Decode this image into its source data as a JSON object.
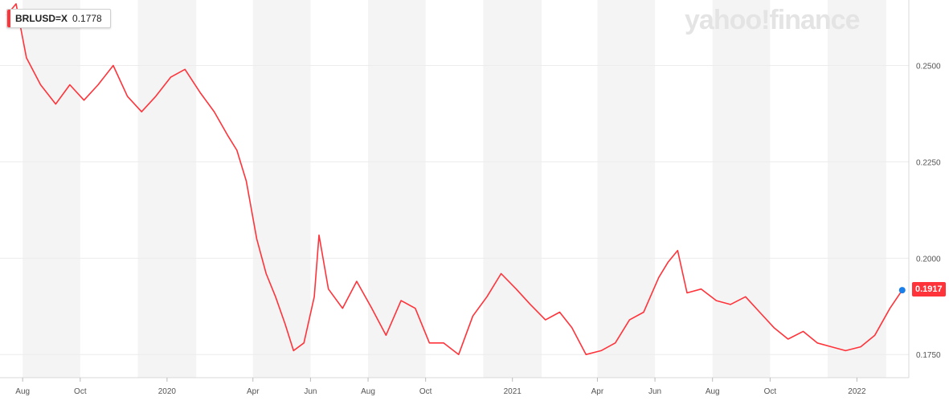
{
  "legend": {
    "symbol": "BRLUSD=X",
    "value": "0.1778"
  },
  "watermark": {
    "brand": "yahoo!finance"
  },
  "last_price_label": "0.1917",
  "colors": {
    "line": "#ff333a",
    "current_dot": "#1a7fe8",
    "band": "#f4f4f4",
    "grid": "#ececec"
  },
  "chart_data": {
    "type": "line",
    "title": "",
    "xlabel": "",
    "ylabel": "",
    "series": [
      {
        "name": "",
        "x": [
          "2019-07-15",
          "2019-07-25",
          "2019-08-05",
          "2019-08-20",
          "2019-09-05",
          "2019-09-20",
          "2019-10-05",
          "2019-10-20",
          "2019-11-05",
          "2019-11-20",
          "2019-12-05",
          "2019-12-20",
          "2020-01-05",
          "2020-01-20",
          "2020-02-05",
          "2020-02-20",
          "2020-03-05",
          "2020-03-15",
          "2020-03-25",
          "2020-04-05",
          "2020-04-15",
          "2020-04-25",
          "2020-05-05",
          "2020-05-14",
          "2020-05-25",
          "2020-06-05",
          "2020-06-10",
          "2020-06-20",
          "2020-07-05",
          "2020-07-20",
          "2020-08-05",
          "2020-08-20",
          "2020-09-05",
          "2020-09-20",
          "2020-10-05",
          "2020-10-20",
          "2020-11-05",
          "2020-11-20",
          "2020-12-05",
          "2020-12-20",
          "2021-01-05",
          "2021-01-20",
          "2021-02-05",
          "2021-02-20",
          "2021-03-05",
          "2021-03-20",
          "2021-04-05",
          "2021-04-20",
          "2021-05-05",
          "2021-05-20",
          "2021-06-05",
          "2021-06-15",
          "2021-06-25",
          "2021-07-05",
          "2021-07-20",
          "2021-08-05",
          "2021-08-20",
          "2021-09-05",
          "2021-09-20",
          "2021-10-05",
          "2021-10-20",
          "2021-11-05",
          "2021-11-20",
          "2021-12-05",
          "2021-12-20",
          "2022-01-05",
          "2022-01-20",
          "2022-02-05",
          "2022-02-18"
        ],
        "values": [
          0.263,
          0.266,
          0.252,
          0.245,
          0.24,
          0.245,
          0.241,
          0.245,
          0.25,
          0.242,
          0.238,
          0.242,
          0.247,
          0.249,
          0.243,
          0.238,
          0.232,
          0.228,
          0.22,
          0.205,
          0.196,
          0.19,
          0.183,
          0.176,
          0.178,
          0.19,
          0.206,
          0.192,
          0.187,
          0.194,
          0.187,
          0.18,
          0.189,
          0.187,
          0.178,
          0.178,
          0.175,
          0.185,
          0.19,
          0.196,
          0.192,
          0.188,
          0.184,
          0.186,
          0.182,
          0.175,
          0.176,
          0.178,
          0.184,
          0.186,
          0.195,
          0.199,
          0.202,
          0.191,
          0.192,
          0.189,
          0.188,
          0.19,
          0.186,
          0.182,
          0.179,
          0.181,
          0.178,
          0.177,
          0.176,
          0.177,
          0.18,
          0.187,
          0.1917
        ]
      }
    ],
    "x_ticks": [
      "Aug",
      "Oct",
      "2020",
      "Apr",
      "Jun",
      "Aug",
      "Oct",
      "2021",
      "Apr",
      "Jun",
      "Aug",
      "Oct",
      "2022"
    ],
    "y_ticks": [
      "0.1750",
      "0.2000",
      "0.2250",
      "0.2500"
    ],
    "ylim": [
      0.169,
      0.267
    ],
    "xlim": [
      "2019-07-08",
      "2022-02-25"
    ],
    "grid": true,
    "y_axis_position": "right"
  }
}
